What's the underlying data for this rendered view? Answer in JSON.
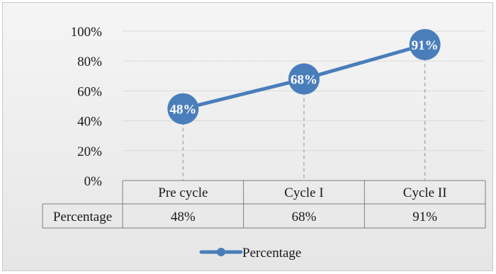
{
  "chart_data": {
    "type": "line",
    "categories": [
      "Pre cycle",
      "Cycle I",
      "Cycle II"
    ],
    "series": [
      {
        "name": "Percentage",
        "values": [
          48,
          68,
          91
        ],
        "labels": [
          "48%",
          "68%",
          "91%"
        ]
      }
    ],
    "ylim": [
      0,
      100
    ],
    "yticks": [
      0,
      20,
      40,
      60,
      80,
      100
    ],
    "ytick_labels": [
      "0%",
      "20%",
      "40%",
      "60%",
      "80%",
      "100%"
    ],
    "table_row_label": "Percentage",
    "table_values": [
      "48%",
      "68%",
      "91%"
    ],
    "legend": {
      "label": "Percentage",
      "position": "bottom"
    },
    "grid": true,
    "drop_lines": true,
    "colors": {
      "series": "#4a7ebb",
      "grid": "#d9d9d9",
      "drop_line": "#a6a6a6",
      "table_border": "#7f7f7f"
    }
  }
}
